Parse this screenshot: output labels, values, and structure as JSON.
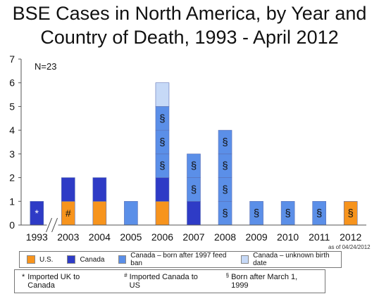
{
  "chart_data": {
    "type": "bar",
    "stacked": true,
    "title_line1": "BSE Cases in North America, by Year and",
    "title_line2": "Country of Death, 1993 - April 2012",
    "annotation_n": "N=23",
    "as_of": "as of 04/24/2012",
    "categories": [
      "1993",
      "2003",
      "2004",
      "2005",
      "2006",
      "2007",
      "2008",
      "2009",
      "2010",
      "2011",
      "2012"
    ],
    "ylim": [
      0,
      7
    ],
    "yticks": [
      "0",
      "1",
      "2",
      "3",
      "4",
      "5",
      "6",
      "7"
    ],
    "axis_break_between": [
      "1993",
      "2003"
    ],
    "gridlines": false,
    "series": [
      {
        "name": "U.S.",
        "color": "#F7941D",
        "values": [
          0,
          1,
          1,
          0,
          1,
          0,
          0,
          0,
          0,
          0,
          1
        ]
      },
      {
        "name": "Canada",
        "color": "#2E3BC6",
        "values": [
          1,
          1,
          1,
          0,
          1,
          1,
          0,
          0,
          0,
          0,
          0
        ]
      },
      {
        "name": "Canada – born after 1997 feed ban",
        "color": "#5B8FE8",
        "values": [
          0,
          0,
          0,
          1,
          3,
          2,
          4,
          1,
          1,
          1,
          0
        ]
      },
      {
        "name": "Canada – unknown  birth date",
        "color": "#C6D9F7",
        "values": [
          0,
          0,
          0,
          0,
          1,
          0,
          0,
          0,
          0,
          0,
          0
        ]
      }
    ],
    "cell_marks": [
      {
        "category": "1993",
        "level": 0,
        "symbol": "*"
      },
      {
        "category": "2003",
        "level": 0,
        "symbol": "#"
      },
      {
        "category": "2005",
        "level": 0,
        "symbol": ""
      },
      {
        "category": "2006",
        "level": 2,
        "symbol": "§"
      },
      {
        "category": "2006",
        "level": 3,
        "symbol": "§"
      },
      {
        "category": "2006",
        "level": 4,
        "symbol": "§"
      },
      {
        "category": "2007",
        "level": 1,
        "symbol": "§"
      },
      {
        "category": "2007",
        "level": 2,
        "symbol": "§"
      },
      {
        "category": "2008",
        "level": 0,
        "symbol": "§"
      },
      {
        "category": "2008",
        "level": 1,
        "symbol": "§"
      },
      {
        "category": "2008",
        "level": 2,
        "symbol": "§"
      },
      {
        "category": "2008",
        "level": 3,
        "symbol": "§"
      },
      {
        "category": "2009",
        "level": 0,
        "symbol": "§"
      },
      {
        "category": "2010",
        "level": 0,
        "symbol": "§"
      },
      {
        "category": "2011",
        "level": 0,
        "symbol": "§"
      },
      {
        "category": "2012",
        "level": 0,
        "symbol": "§"
      }
    ],
    "legend": [
      {
        "label": "U.S.",
        "color": "#F7941D"
      },
      {
        "label": "Canada",
        "color": "#2E3BC6"
      },
      {
        "label": "Canada – born after 1997 feed ban",
        "color": "#5B8FE8"
      },
      {
        "label": "Canada – unknown  birth date",
        "color": "#C6D9F7"
      }
    ],
    "footnotes": [
      {
        "symbol": "*",
        "text": "Imported UK to Canada",
        "superscript": false
      },
      {
        "symbol": "#",
        "text": "Imported Canada to US",
        "superscript": true
      },
      {
        "symbol": "§",
        "text": "Born after March 1, 1999",
        "superscript": true
      }
    ]
  }
}
